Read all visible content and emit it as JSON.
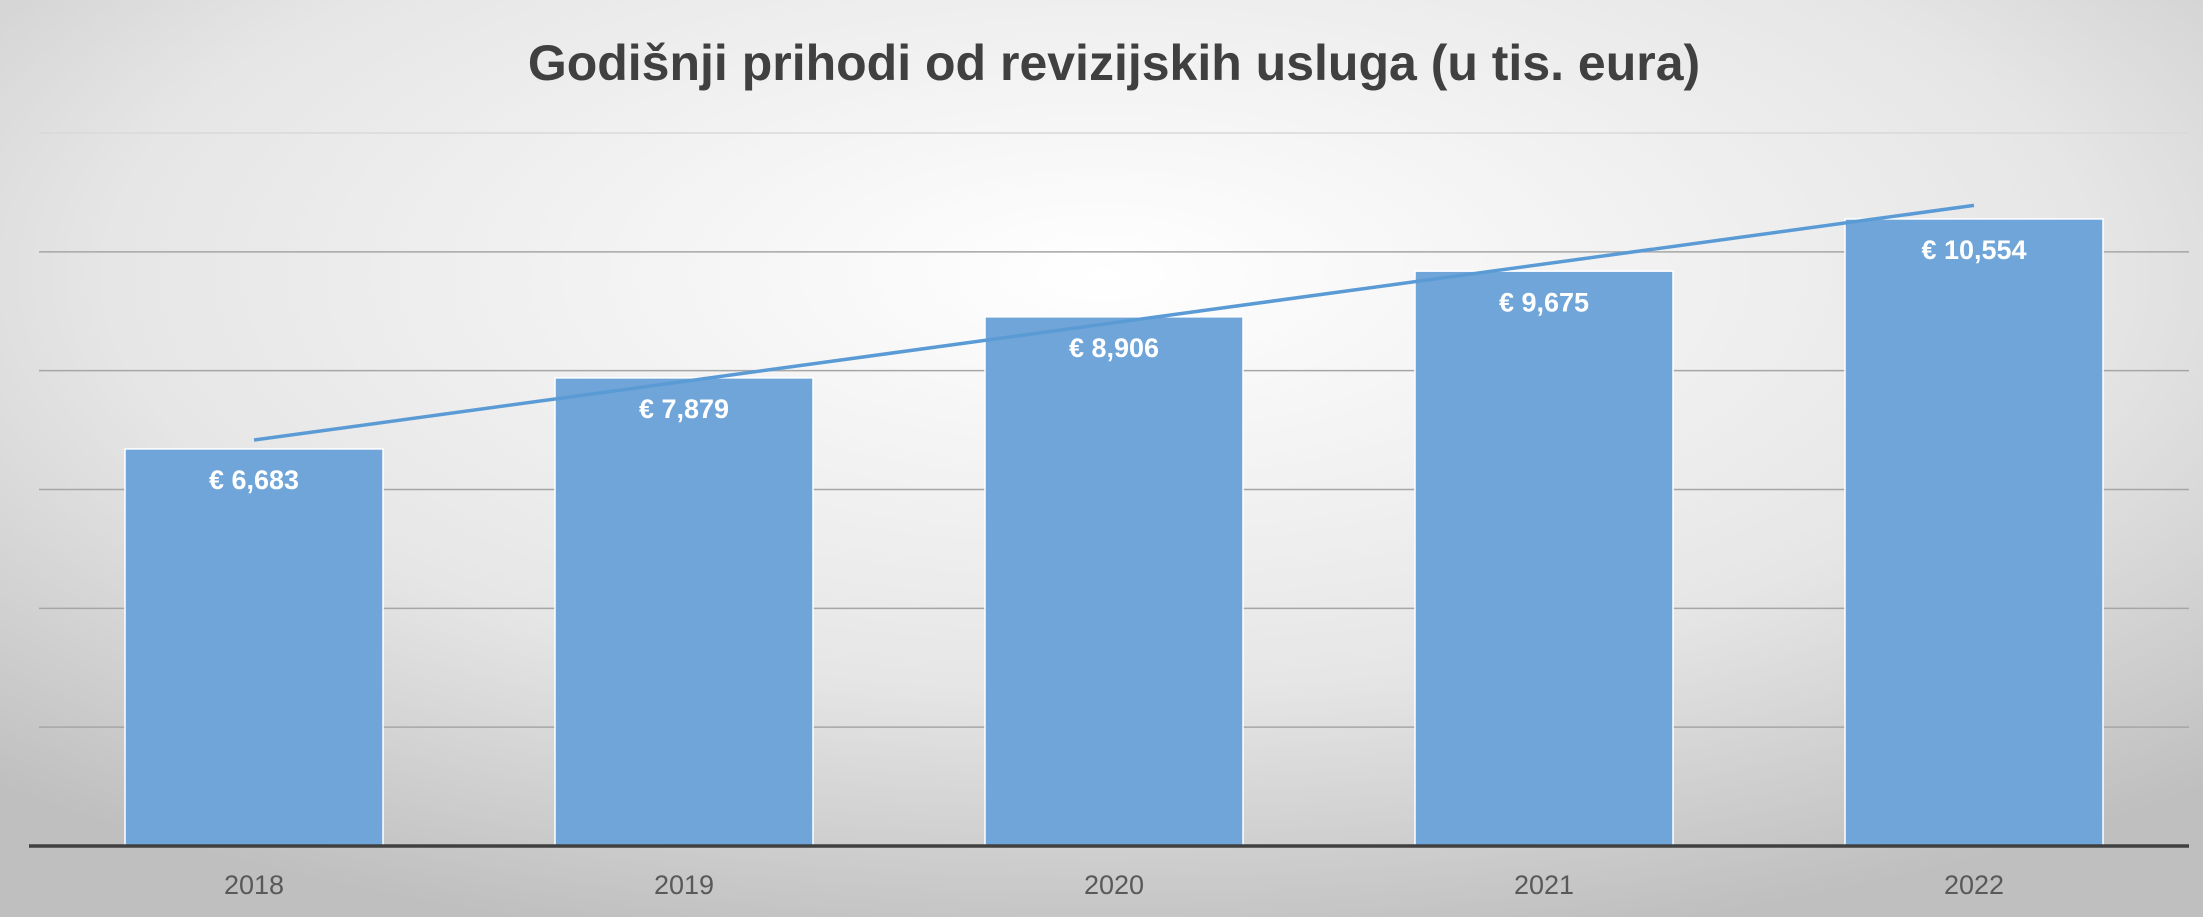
{
  "chart_data": {
    "type": "bar",
    "title": "Godišnji prihodi od revizijskih usluga (u tis. eura)",
    "categories": [
      "2018",
      "2019",
      "2020",
      "2021",
      "2022"
    ],
    "values": [
      6683,
      7879,
      8906,
      9675,
      10554
    ],
    "value_labels": [
      "€ 6,683",
      "€ 7,879",
      "€ 8,906",
      "€ 9,675",
      "€ 10,554"
    ],
    "color": "#6fa5d8",
    "trendline_color": "#5b9bd5",
    "ylim": [
      0,
      12000
    ],
    "yticks": [
      0,
      2000,
      4000,
      6000,
      8000,
      10000,
      12000
    ],
    "grid": true,
    "trendline": "linear"
  }
}
